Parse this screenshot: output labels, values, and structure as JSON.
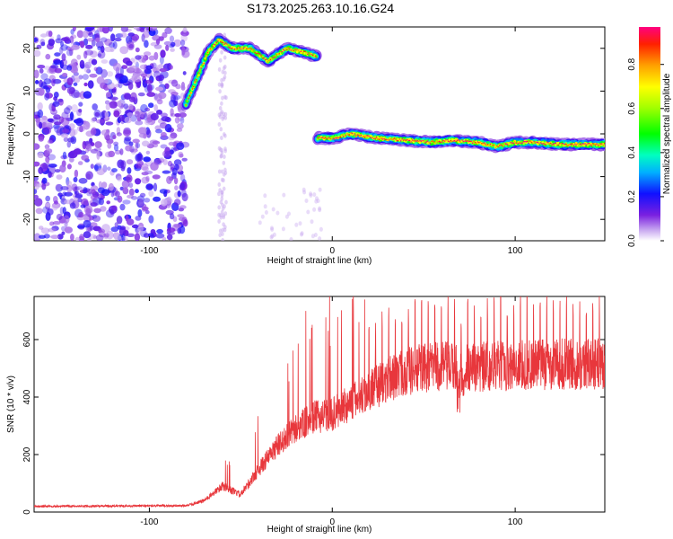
{
  "title": "S173.2025.263.10.16.G24",
  "chart_data": [
    {
      "type": "heatmap",
      "xlabel": "Height of straight line (km)",
      "ylabel": "Frequency (Hz)",
      "xlim": [
        -163,
        149
      ],
      "ylim": [
        -25,
        25
      ],
      "xticks": [
        -100,
        0,
        100
      ],
      "yticks": [
        -20,
        -10,
        0,
        10,
        20
      ],
      "colorbar": {
        "label": "Normalized spectral amplitude",
        "range": [
          0,
          0.97
        ],
        "ticks": [
          0.0,
          0.2,
          0.4,
          0.6,
          0.8
        ]
      },
      "features": [
        {
          "name": "noise",
          "x_range": [
            -163,
            -80
          ],
          "y_range": [
            -25,
            25
          ]
        },
        {
          "name": "rising-arc",
          "points": [
            [
              -80,
              7
            ],
            [
              -75,
              12
            ],
            [
              -68,
              19
            ],
            [
              -62,
              22
            ],
            [
              -55,
              20
            ],
            [
              -45,
              20
            ],
            [
              -35,
              17
            ],
            [
              -25,
              20
            ],
            [
              -15,
              19
            ],
            [
              -8,
              18
            ]
          ]
        },
        {
          "name": "direct-line",
          "points": [
            [
              -8,
              -1
            ],
            [
              0,
              -1
            ],
            [
              10,
              0
            ],
            [
              25,
              -1
            ],
            [
              40,
              -1.5
            ],
            [
              55,
              -2
            ],
            [
              65,
              -1.5
            ],
            [
              80,
              -2
            ],
            [
              90,
              -3
            ],
            [
              100,
              -2
            ],
            [
              110,
              -2
            ],
            [
              125,
              -2.5
            ],
            [
              149,
              -2.5
            ]
          ]
        }
      ]
    },
    {
      "type": "line",
      "xlabel": "Height of straight line (km)",
      "ylabel": "SNR (10 * v/v)",
      "xlim": [
        -163,
        149
      ],
      "ylim": [
        0,
        750
      ],
      "xticks": [
        -100,
        0,
        100
      ],
      "yticks": [
        0,
        200,
        400,
        600
      ],
      "color": "#e8373c",
      "series": [
        {
          "name": "SNR",
          "envelope": [
            [
              -163,
              20
            ],
            [
              -80,
              22
            ],
            [
              -70,
              40
            ],
            [
              -60,
              90
            ],
            [
              -50,
              60
            ],
            [
              -40,
              150
            ],
            [
              -30,
              230
            ],
            [
              -20,
              290
            ],
            [
              -10,
              330
            ],
            [
              0,
              340
            ],
            [
              10,
              380
            ],
            [
              20,
              420
            ],
            [
              30,
              460
            ],
            [
              40,
              490
            ],
            [
              50,
              500
            ],
            [
              60,
              505
            ],
            [
              80,
              505
            ],
            [
              100,
              510
            ],
            [
              120,
              515
            ],
            [
              149,
              515
            ]
          ]
        }
      ]
    }
  ]
}
